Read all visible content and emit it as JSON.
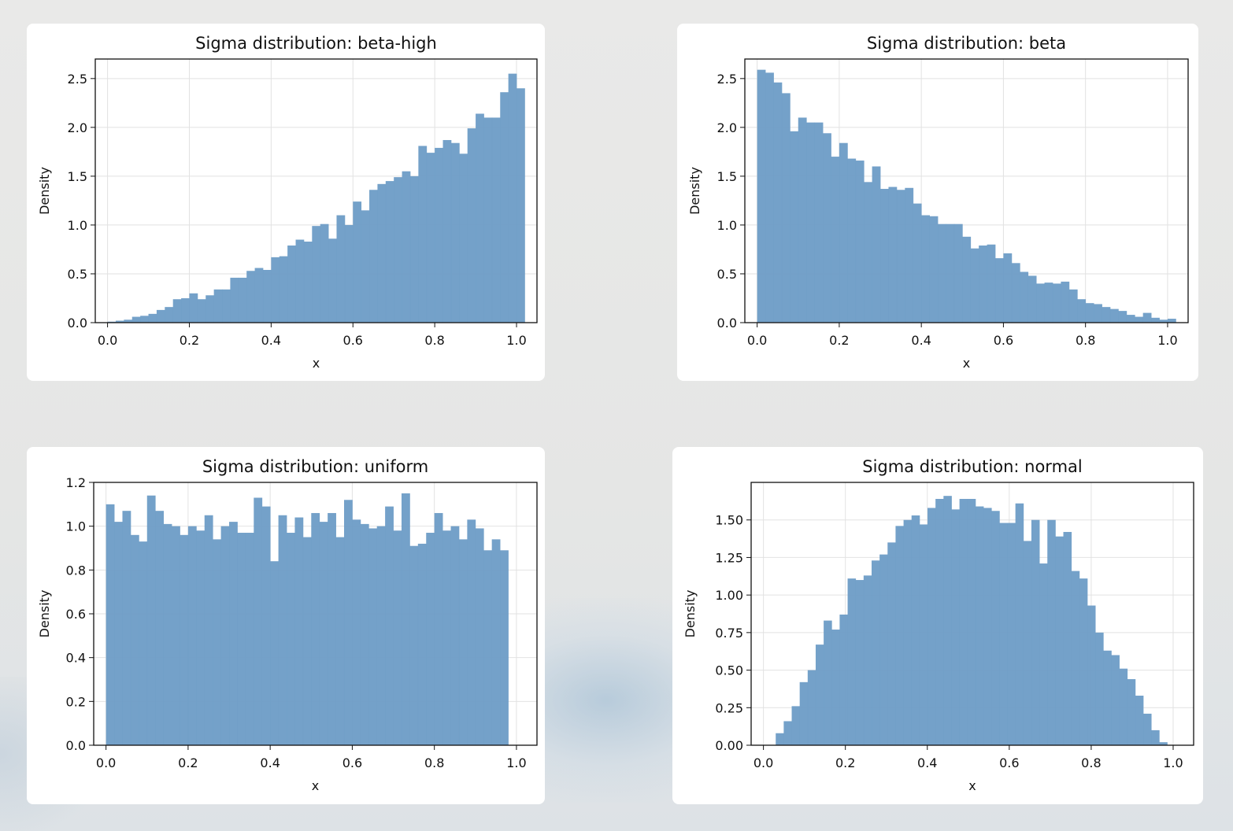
{
  "page": {
    "background": "#e7e7e6",
    "bar_color": "#6f9ec7",
    "card_color": "#ffffff"
  },
  "chart_data": [
    {
      "type": "bar",
      "title": "Sigma distribution: beta-high",
      "xlabel": "x",
      "ylabel": "Density",
      "xlim": [
        -0.03,
        1.05
      ],
      "ylim": [
        0,
        2.7
      ],
      "xticks": [
        "0.0",
        "0.2",
        "0.4",
        "0.6",
        "0.8",
        "1.0"
      ],
      "xtick_values": [
        0,
        0.2,
        0.4,
        0.6,
        0.8,
        1.0
      ],
      "yticks": [
        "0.0",
        "0.5",
        "1.0",
        "1.5",
        "2.0",
        "2.5"
      ],
      "ytick_values": [
        0,
        0.5,
        1.0,
        1.5,
        2.0,
        2.5
      ],
      "grid": true,
      "bin_start": 0.0,
      "bin_width": 0.02,
      "values": [
        0.01,
        0.02,
        0.03,
        0.06,
        0.07,
        0.09,
        0.13,
        0.16,
        0.24,
        0.25,
        0.3,
        0.24,
        0.28,
        0.34,
        0.34,
        0.46,
        0.46,
        0.53,
        0.56,
        0.54,
        0.67,
        0.68,
        0.79,
        0.85,
        0.83,
        0.99,
        1.01,
        0.86,
        1.1,
        1.0,
        1.24,
        1.15,
        1.36,
        1.42,
        1.45,
        1.49,
        1.55,
        1.5,
        1.81,
        1.74,
        1.79,
        1.87,
        1.84,
        1.73,
        1.99,
        2.14,
        2.1,
        2.1,
        2.36,
        2.55,
        2.4
      ]
    },
    {
      "type": "bar",
      "title": "Sigma distribution: beta",
      "xlabel": "x",
      "ylabel": "Density",
      "xlim": [
        -0.03,
        1.05
      ],
      "ylim": [
        0,
        2.7
      ],
      "xticks": [
        "0.0",
        "0.2",
        "0.4",
        "0.6",
        "0.8",
        "1.0"
      ],
      "xtick_values": [
        0,
        0.2,
        0.4,
        0.6,
        0.8,
        1.0
      ],
      "yticks": [
        "0.0",
        "0.5",
        "1.0",
        "1.5",
        "2.0",
        "2.5"
      ],
      "ytick_values": [
        0,
        0.5,
        1.0,
        1.5,
        2.0,
        2.5
      ],
      "grid": true,
      "bin_start": 0.0,
      "bin_width": 0.02,
      "values": [
        2.59,
        2.56,
        2.46,
        2.35,
        1.96,
        2.1,
        2.05,
        2.05,
        1.94,
        1.7,
        1.84,
        1.68,
        1.66,
        1.44,
        1.6,
        1.37,
        1.39,
        1.36,
        1.38,
        1.22,
        1.1,
        1.09,
        1.01,
        1.01,
        1.01,
        0.88,
        0.76,
        0.79,
        0.8,
        0.66,
        0.71,
        0.61,
        0.52,
        0.48,
        0.4,
        0.41,
        0.4,
        0.42,
        0.34,
        0.24,
        0.2,
        0.19,
        0.16,
        0.14,
        0.12,
        0.08,
        0.06,
        0.1,
        0.05,
        0.03,
        0.04
      ]
    },
    {
      "type": "bar",
      "title": "Sigma distribution: uniform",
      "xlabel": "x",
      "ylabel": "Density",
      "xlim": [
        -0.03,
        1.05
      ],
      "ylim": [
        0,
        1.2
      ],
      "xticks": [
        "0.0",
        "0.2",
        "0.4",
        "0.6",
        "0.8",
        "1.0"
      ],
      "xtick_values": [
        0,
        0.2,
        0.4,
        0.6,
        0.8,
        1.0
      ],
      "yticks": [
        "0.0",
        "0.2",
        "0.4",
        "0.6",
        "0.8",
        "1.0",
        "1.2"
      ],
      "ytick_values": [
        0,
        0.2,
        0.4,
        0.6,
        0.8,
        1.0,
        1.2
      ],
      "grid": true,
      "bin_start": 0.0,
      "bin_width": 0.02,
      "values": [
        1.1,
        1.02,
        1.07,
        0.96,
        0.93,
        1.14,
        1.07,
        1.01,
        1.0,
        0.96,
        1.0,
        0.98,
        1.05,
        0.94,
        1.0,
        1.02,
        0.97,
        0.97,
        1.13,
        1.09,
        0.84,
        1.05,
        0.97,
        1.04,
        0.95,
        1.06,
        1.02,
        1.06,
        0.95,
        1.12,
        1.03,
        1.01,
        0.99,
        1.0,
        1.09,
        0.98,
        1.15,
        0.91,
        0.92,
        0.97,
        1.06,
        0.98,
        1.0,
        0.94,
        1.03,
        0.99,
        0.89,
        0.94,
        0.89
      ]
    },
    {
      "type": "bar",
      "title": "Sigma distribution: normal",
      "xlabel": "x",
      "ylabel": "Density",
      "xlim": [
        -0.03,
        1.05
      ],
      "ylim": [
        0,
        1.75
      ],
      "xticks": [
        "0.0",
        "0.2",
        "0.4",
        "0.6",
        "0.8",
        "1.0"
      ],
      "xtick_values": [
        0,
        0.2,
        0.4,
        0.6,
        0.8,
        1.0
      ],
      "yticks": [
        "0.00",
        "0.25",
        "0.50",
        "0.75",
        "1.00",
        "1.25",
        "1.50"
      ],
      "ytick_values": [
        0,
        0.25,
        0.5,
        0.75,
        1.0,
        1.25,
        1.5
      ],
      "grid": true,
      "bin_start": 0.03,
      "bin_width": 0.0195,
      "values": [
        0.08,
        0.16,
        0.26,
        0.42,
        0.5,
        0.67,
        0.83,
        0.77,
        0.87,
        1.11,
        1.1,
        1.13,
        1.23,
        1.27,
        1.35,
        1.46,
        1.5,
        1.53,
        1.47,
        1.58,
        1.64,
        1.66,
        1.57,
        1.64,
        1.64,
        1.59,
        1.58,
        1.56,
        1.48,
        1.48,
        1.61,
        1.36,
        1.5,
        1.21,
        1.5,
        1.39,
        1.42,
        1.16,
        1.11,
        0.93,
        0.75,
        0.63,
        0.6,
        0.51,
        0.44,
        0.33,
        0.21,
        0.1,
        0.02
      ]
    }
  ]
}
